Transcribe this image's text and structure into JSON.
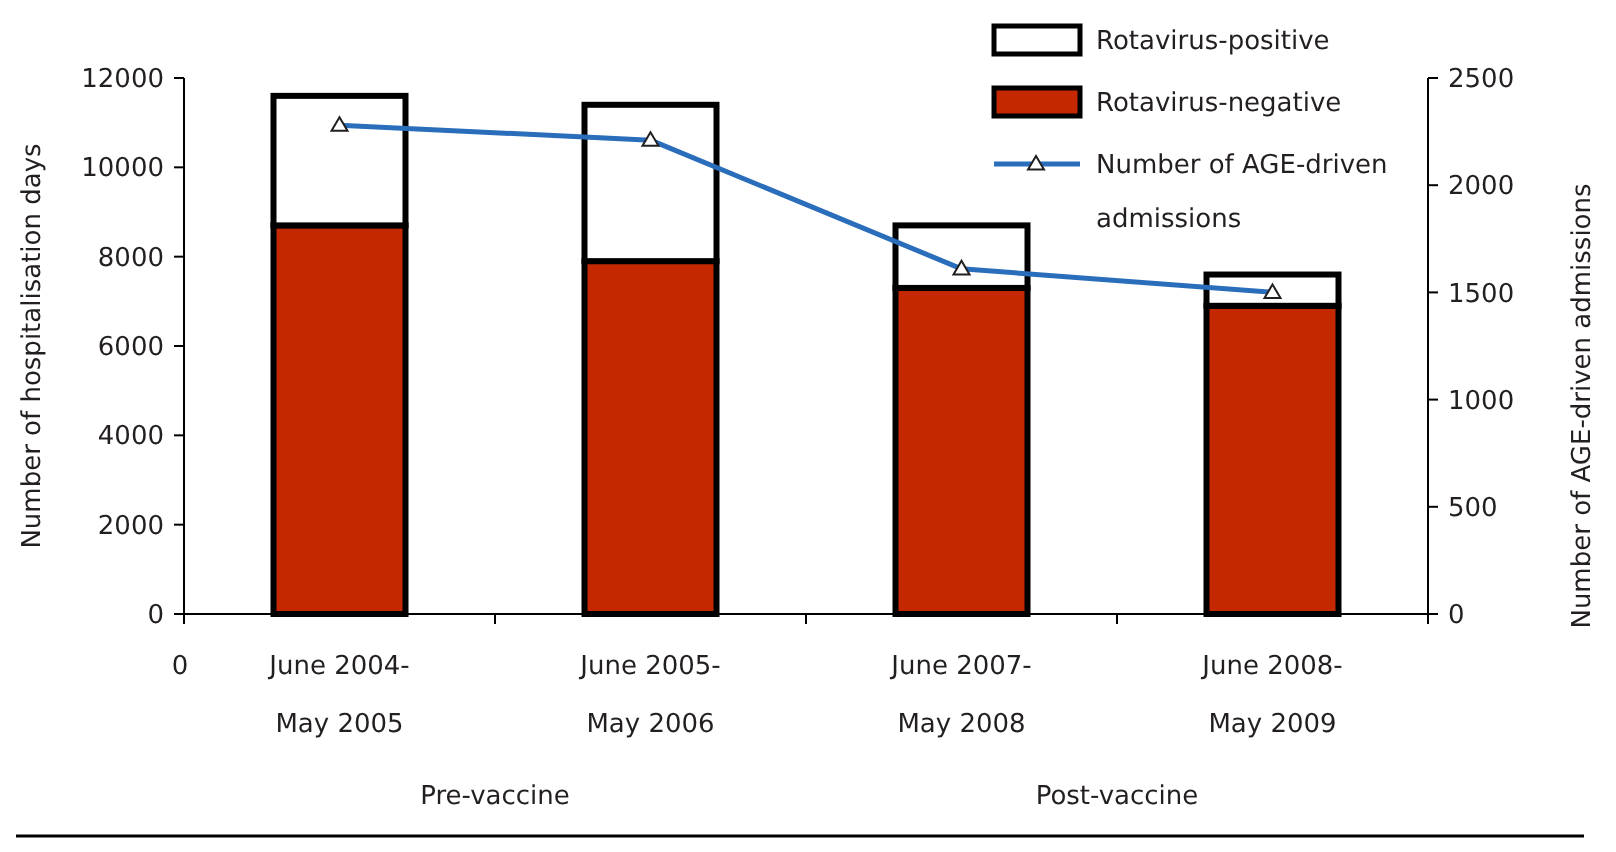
{
  "chart_data": {
    "type": "bar",
    "stacked": true,
    "categories": [
      "June 2004-\nMay 2005",
      "June 2005-\nMay 2006",
      "June 2007-\nMay 2008",
      "June 2008-\nMay 2009"
    ],
    "series": [
      {
        "name": "Rotavirus-negative",
        "color": "#c42800",
        "values": [
          8700,
          7900,
          7300,
          6900
        ]
      },
      {
        "name": "Rotavirus-positive",
        "color": "#ffffff",
        "values": [
          2900,
          3500,
          1400,
          700
        ]
      },
      {
        "name": "Number of AGE-driven admissions",
        "type": "line",
        "axis": "y2",
        "color": "#2a6ebb",
        "marker": "triangle",
        "values": [
          2280,
          2210,
          1610,
          1500
        ]
      }
    ],
    "ylabel": "Number of hospitalisation days",
    "y2label": "Number of AGE-driven admissions",
    "ylim": [
      0,
      12000
    ],
    "yticks": [
      0,
      2000,
      4000,
      6000,
      8000,
      10000,
      12000
    ],
    "y2lim": [
      0,
      2500
    ],
    "y2ticks": [
      0,
      500,
      1000,
      1500,
      2000,
      2500
    ],
    "annotations": [
      "0",
      "Pre-vaccine",
      "Post-vaccine"
    ],
    "legend": "top right",
    "grid": false
  }
}
